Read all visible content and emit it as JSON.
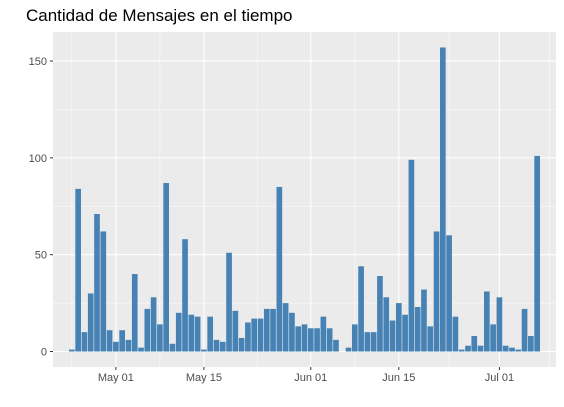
{
  "chart_data": {
    "type": "bar",
    "title": "Cantidad de Mensajes en el tiempo",
    "xlabel": "",
    "ylabel": "",
    "ylim": [
      -8,
      165
    ],
    "xlim": [
      "2020-04-21",
      "2020-07-10"
    ],
    "y_ticks": [
      0,
      50,
      100,
      150
    ],
    "x_ticks": [
      {
        "date": "2020-05-01",
        "label": "May 01"
      },
      {
        "date": "2020-05-15",
        "label": "May 15"
      },
      {
        "date": "2020-06-01",
        "label": "Jun 01"
      },
      {
        "date": "2020-06-15",
        "label": "Jun 15"
      },
      {
        "date": "2020-07-01",
        "label": "Jul 01"
      }
    ],
    "grid": true,
    "bar_color": "#4682B4",
    "panel_background": "#EBEBEB",
    "x": [
      "2020-04-24",
      "2020-04-25",
      "2020-04-26",
      "2020-04-27",
      "2020-04-28",
      "2020-04-29",
      "2020-04-30",
      "2020-05-01",
      "2020-05-02",
      "2020-05-03",
      "2020-05-04",
      "2020-05-05",
      "2020-05-06",
      "2020-05-07",
      "2020-05-08",
      "2020-05-09",
      "2020-05-10",
      "2020-05-11",
      "2020-05-12",
      "2020-05-13",
      "2020-05-14",
      "2020-05-15",
      "2020-05-16",
      "2020-05-17",
      "2020-05-18",
      "2020-05-19",
      "2020-05-20",
      "2020-05-21",
      "2020-05-22",
      "2020-05-23",
      "2020-05-24",
      "2020-05-25",
      "2020-05-26",
      "2020-05-27",
      "2020-05-28",
      "2020-05-29",
      "2020-05-30",
      "2020-05-31",
      "2020-06-01",
      "2020-06-02",
      "2020-06-03",
      "2020-06-04",
      "2020-06-05",
      "2020-06-06",
      "2020-06-07",
      "2020-06-08",
      "2020-06-09",
      "2020-06-10",
      "2020-06-11",
      "2020-06-12",
      "2020-06-13",
      "2020-06-14",
      "2020-06-15",
      "2020-06-16",
      "2020-06-17",
      "2020-06-18",
      "2020-06-19",
      "2020-06-20",
      "2020-06-21",
      "2020-06-22",
      "2020-06-23",
      "2020-06-24",
      "2020-06-25",
      "2020-06-26",
      "2020-06-27",
      "2020-06-28",
      "2020-06-29",
      "2020-06-30",
      "2020-07-01",
      "2020-07-02",
      "2020-07-03",
      "2020-07-04",
      "2020-07-05",
      "2020-07-06",
      "2020-07-07"
    ],
    "values": [
      1,
      84,
      10,
      30,
      71,
      62,
      11,
      5,
      11,
      6,
      40,
      2,
      22,
      28,
      14,
      87,
      4,
      20,
      58,
      19,
      18,
      1,
      18,
      6,
      5,
      51,
      21,
      7,
      15,
      17,
      17,
      22,
      22,
      85,
      25,
      20,
      13,
      14,
      12,
      12,
      18,
      12,
      6,
      0,
      2,
      14,
      44,
      10,
      10,
      39,
      28,
      16,
      25,
      19,
      99,
      23,
      32,
      13,
      62,
      157,
      60,
      18,
      1,
      3,
      8,
      3,
      31,
      14,
      28,
      3,
      2,
      1,
      22,
      8,
      101
    ]
  }
}
